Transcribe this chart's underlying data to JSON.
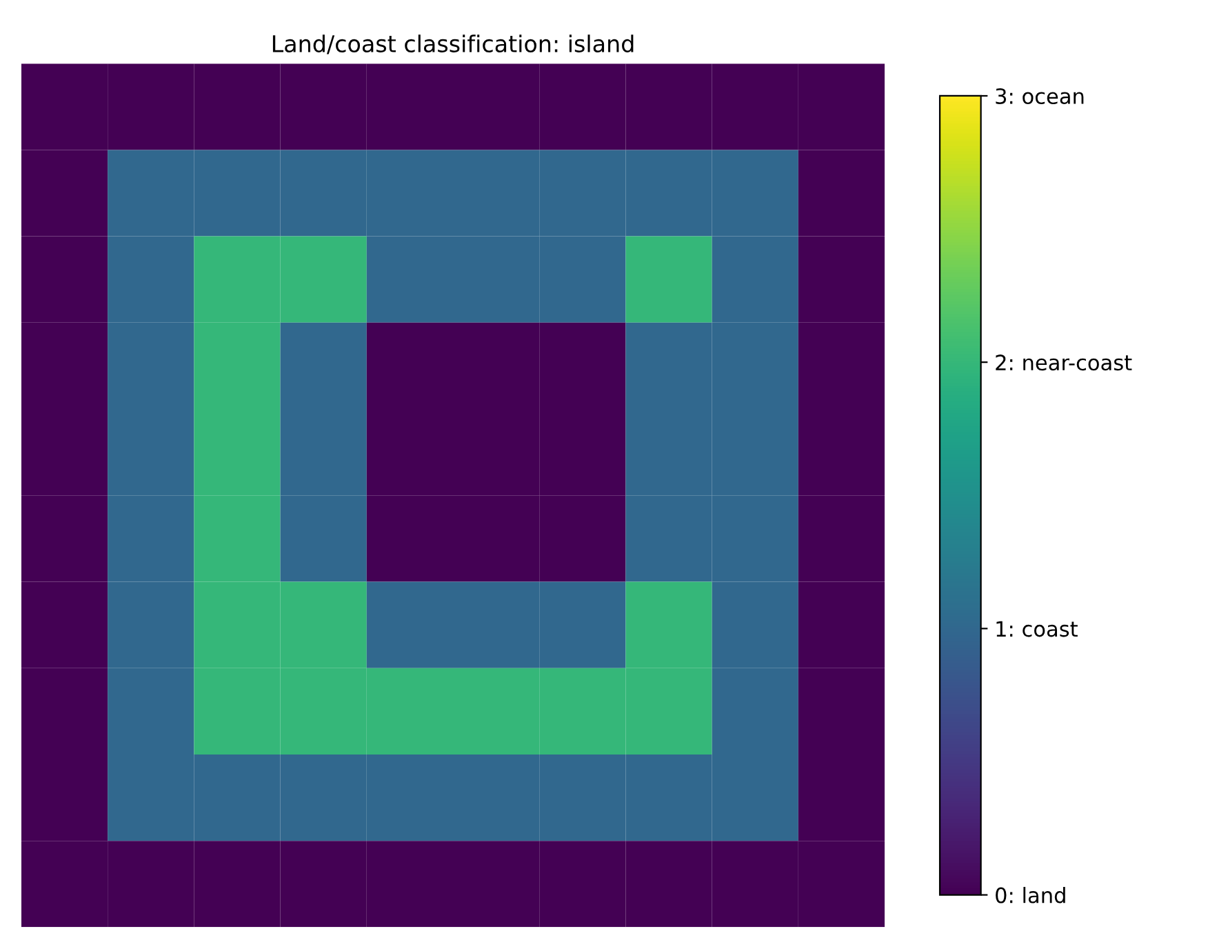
{
  "chart_data": {
    "type": "heatmap",
    "title": "Land/coast classification: island",
    "categories": [
      null,
      null,
      null,
      null,
      null,
      null,
      null,
      null,
      null,
      null
    ],
    "y_categories": [
      null,
      null,
      null,
      null,
      null,
      null,
      null,
      null,
      null,
      null
    ],
    "cells": [
      [
        0,
        0,
        0,
        0,
        0,
        0,
        0,
        0,
        0,
        0
      ],
      [
        0,
        1,
        1,
        1,
        1,
        1,
        1,
        1,
        1,
        0
      ],
      [
        0,
        1,
        2,
        2,
        1,
        1,
        1,
        2,
        1,
        0
      ],
      [
        0,
        1,
        2,
        1,
        0,
        0,
        0,
        1,
        1,
        0
      ],
      [
        0,
        1,
        2,
        1,
        0,
        0,
        0,
        1,
        1,
        0
      ],
      [
        0,
        1,
        2,
        1,
        0,
        0,
        0,
        1,
        1,
        0
      ],
      [
        0,
        1,
        2,
        2,
        1,
        1,
        1,
        2,
        1,
        0
      ],
      [
        0,
        1,
        2,
        2,
        2,
        2,
        2,
        2,
        1,
        0
      ],
      [
        0,
        1,
        1,
        1,
        1,
        1,
        1,
        1,
        1,
        0
      ],
      [
        0,
        0,
        0,
        0,
        0,
        0,
        0,
        0,
        0,
        0
      ]
    ],
    "clim": [
      0,
      3
    ],
    "cticks": [
      {
        "value": 0,
        "label": "0: land"
      },
      {
        "value": 1,
        "label": "1: coast"
      },
      {
        "value": 2,
        "label": "2: near-coast"
      },
      {
        "value": 3,
        "label": "3: ocean"
      }
    ],
    "tick_labels": false
  }
}
